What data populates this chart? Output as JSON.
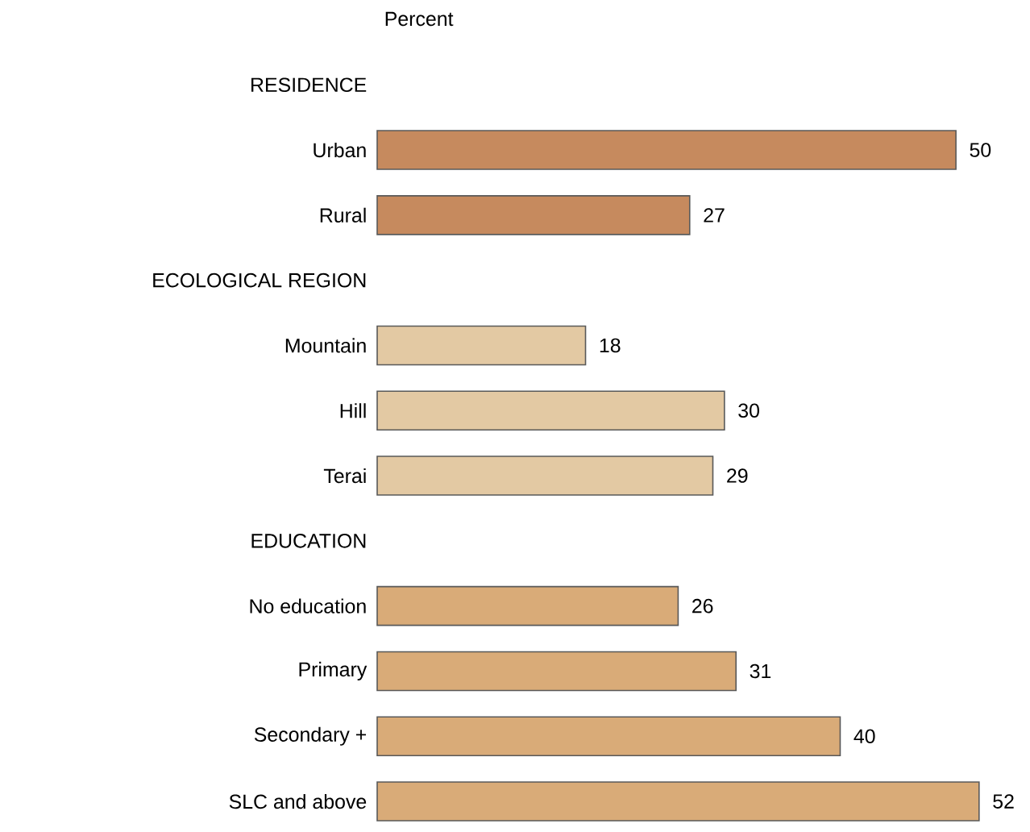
{
  "chart_data": {
    "type": "bar",
    "orientation": "horizontal",
    "title": "Percent",
    "categories": [
      "RESIDENCE",
      "Urban",
      "Rural",
      "ECOLOGICAL REGION",
      "Mountain",
      "Hill",
      "Terai",
      "EDUCATION",
      "No education",
      "Primary",
      "Secondary +",
      "SLC and above"
    ],
    "values": [
      null,
      50,
      27,
      null,
      18,
      30,
      29,
      null,
      26,
      31,
      40,
      52
    ],
    "colors": [
      null,
      "#c68a5e",
      "#c68a5e",
      null,
      "#e3c9a3",
      "#e3c9a3",
      "#e3c9a3",
      null,
      "#d9ab78",
      "#d9ab78",
      "#d9ab78",
      "#d9ab78"
    ],
    "data_labels": true
  }
}
